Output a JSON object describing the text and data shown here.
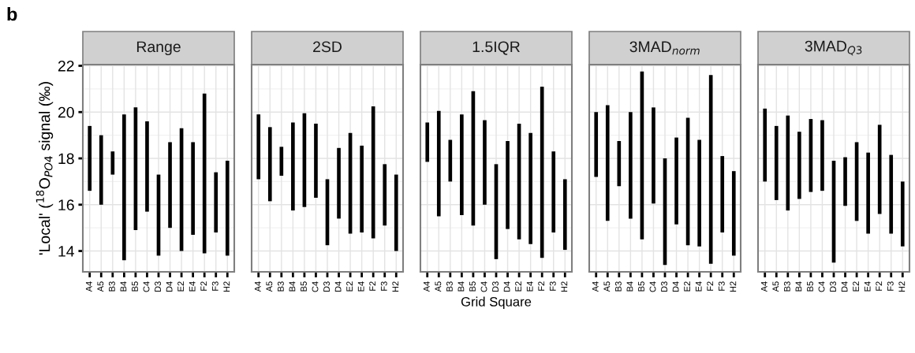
{
  "chart_data": [
    {
      "type": "bar",
      "title": "Range",
      "ylabel": "'Local' ($^{18}$O$_{PO4}$ signal (‰)",
      "annotations": [
        "b"
      ],
      "categories": [
        "A4",
        "A5",
        "B3",
        "B4",
        "B5",
        "C4",
        "D3",
        "D4",
        "E2",
        "E4",
        "F2",
        "F3",
        "H2"
      ],
      "color": "#000000",
      "base": [
        16.6,
        16.0,
        17.3,
        13.6,
        14.9,
        15.7,
        13.8,
        15.0,
        14.0,
        14.7,
        13.9,
        14.8,
        13.8
      ],
      "values": [
        2.8,
        3.0,
        1.0,
        6.3,
        5.3,
        3.9,
        3.5,
        3.7,
        5.3,
        4.0,
        6.9,
        2.6,
        4.1
      ],
      "ylim": [
        13.1,
        22.05
      ],
      "yticks": [
        14,
        16,
        18,
        20,
        22
      ],
      "grid": true
    },
    {
      "type": "bar",
      "title": "2SD",
      "categories": [
        "A4",
        "A5",
        "B3",
        "B4",
        "B5",
        "C4",
        "D3",
        "D4",
        "E2",
        "E4",
        "F2",
        "F3",
        "H2"
      ],
      "color": "#000000",
      "base": [
        17.1,
        16.15,
        17.25,
        15.75,
        15.9,
        16.3,
        14.25,
        15.4,
        14.75,
        14.8,
        14.55,
        15.1,
        14.0
      ],
      "values": [
        2.8,
        3.2,
        1.25,
        3.8,
        4.05,
        3.2,
        2.85,
        3.05,
        4.35,
        3.75,
        5.7,
        2.65,
        3.3
      ],
      "ylim": [
        13.1,
        22.05
      ],
      "yticks": [
        14,
        16,
        18,
        20,
        22
      ],
      "grid": true,
      "tick_labels": "x"
    },
    {
      "type": "bar",
      "title": "1.5IQR",
      "xlabel": "Grid Square",
      "categories": [
        "A4",
        "A5",
        "B3",
        "B4",
        "B5",
        "C4",
        "D3",
        "D4",
        "E2",
        "E4",
        "F2",
        "F3",
        "H2"
      ],
      "color": "#000000",
      "base": [
        17.85,
        15.5,
        17.0,
        15.55,
        15.1,
        16.0,
        13.65,
        14.95,
        14.5,
        14.3,
        13.7,
        14.8,
        14.05
      ],
      "values": [
        1.7,
        4.55,
        1.8,
        4.35,
        5.8,
        3.65,
        4.1,
        3.8,
        5.0,
        4.8,
        7.4,
        3.5,
        3.05
      ],
      "ylim": [
        13.1,
        22.05
      ],
      "yticks": [
        14,
        16,
        18,
        20,
        22
      ],
      "grid": true,
      "tick_labels": "x"
    },
    {
      "type": "bar",
      "title": "3MAD$_{norm}$",
      "categories": [
        "A4",
        "A5",
        "B3",
        "B4",
        "B5",
        "C4",
        "D3",
        "D4",
        "E2",
        "E4",
        "F2",
        "F3",
        "H2"
      ],
      "color": "#000000",
      "base": [
        17.2,
        15.3,
        16.8,
        15.4,
        14.5,
        16.05,
        13.4,
        15.15,
        14.25,
        14.2,
        13.45,
        14.8,
        13.8
      ],
      "values": [
        2.8,
        5.0,
        1.95,
        4.6,
        7.25,
        4.15,
        4.6,
        3.75,
        5.5,
        4.6,
        8.15,
        3.3,
        3.65
      ],
      "ylim": [
        13.1,
        22.05
      ],
      "yticks": [
        14,
        16,
        18,
        20,
        22
      ],
      "grid": true,
      "tick_labels": "x"
    },
    {
      "type": "bar",
      "title": "3MAD$_{Q3}$",
      "categories": [
        "A4",
        "A5",
        "B3",
        "B4",
        "B5",
        "C4",
        "D3",
        "D4",
        "E2",
        "E4",
        "F2",
        "F3",
        "H2"
      ],
      "color": "#000000",
      "base": [
        17.0,
        16.2,
        15.75,
        16.25,
        16.55,
        16.6,
        13.5,
        15.95,
        15.3,
        14.75,
        15.6,
        14.75,
        14.2
      ],
      "values": [
        3.15,
        3.2,
        4.1,
        2.9,
        3.15,
        3.05,
        4.4,
        2.1,
        3.4,
        3.5,
        3.85,
        3.4,
        2.8
      ],
      "ylim": [
        13.1,
        22.05
      ],
      "yticks": [
        14,
        16,
        18,
        20,
        22
      ],
      "grid": true,
      "tick_labels": "x"
    }
  ]
}
